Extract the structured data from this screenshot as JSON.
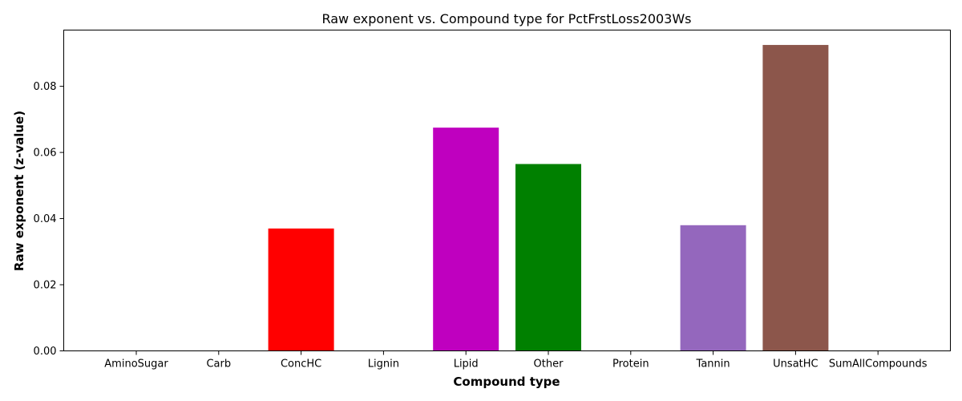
{
  "chart_data": {
    "type": "bar",
    "title": "Raw exponent vs. Compound type for PctFrstLoss2003Ws",
    "xlabel": "Compound type",
    "ylabel": "Raw exponent (z-value)",
    "categories": [
      "AminoSugar",
      "Carb",
      "ConcHC",
      "Lignin",
      "Lipid",
      "Other",
      "Protein",
      "Tannin",
      "UnsatHC",
      "SumAllCompounds"
    ],
    "values": [
      0,
      0,
      0.037,
      0,
      0.0675,
      0.0565,
      0,
      0.038,
      0.0925,
      0
    ],
    "colors": [
      "#1f77b4",
      "#ff7f0e",
      "#ff0000",
      "#d62728",
      "#bf00bf",
      "#008000",
      "#1f77b4",
      "#9467bd",
      "#8c564b",
      "#17becf"
    ],
    "ylim": [
      0,
      0.097
    ],
    "yticks": [
      "0.00",
      "0.02",
      "0.04",
      "0.06",
      "0.08"
    ],
    "grid": false,
    "legend": false
  }
}
